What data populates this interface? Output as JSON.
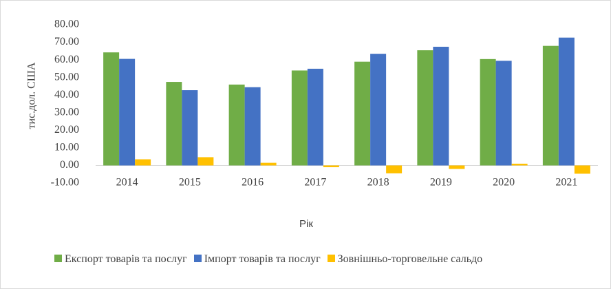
{
  "chart_data": {
    "type": "bar",
    "categories": [
      "2014",
      "2015",
      "2016",
      "2017",
      "2018",
      "2019",
      "2020",
      "2021"
    ],
    "series": [
      {
        "name": "Експорт товарів та послуг",
        "color": "#70ad47",
        "values": [
          64.3,
          47.5,
          46,
          54,
          59,
          65.5,
          60.5,
          68
        ]
      },
      {
        "name": "Імпорт товарів та послуг",
        "color": "#4472c4",
        "values": [
          60.6,
          42.8,
          44.5,
          55,
          63.5,
          67.5,
          59.5,
          72.7
        ]
      },
      {
        "name": "Зовнішньо-торговельне сальдо",
        "color": "#ffc000",
        "values": [
          3.5,
          4.7,
          1.5,
          -1,
          -4.5,
          -2,
          1,
          -4.7
        ]
      }
    ],
    "ylabel": "тис.дол. США",
    "xlabel": "Рік",
    "ylim": [
      -10,
      80
    ],
    "yticks": [
      {
        "value": -10,
        "label": "-10.00"
      },
      {
        "value": 0,
        "label": "0.00"
      },
      {
        "value": 10,
        "label": "10.00"
      },
      {
        "value": 20,
        "label": "20.00"
      },
      {
        "value": 30,
        "label": "30.00"
      },
      {
        "value": 40,
        "label": "40.00"
      },
      {
        "value": 50,
        "label": "50.00"
      },
      {
        "value": 60,
        "label": "60.00"
      },
      {
        "value": 70,
        "label": "70.00"
      },
      {
        "value": 80,
        "label": "80.00"
      }
    ],
    "grid": false
  }
}
